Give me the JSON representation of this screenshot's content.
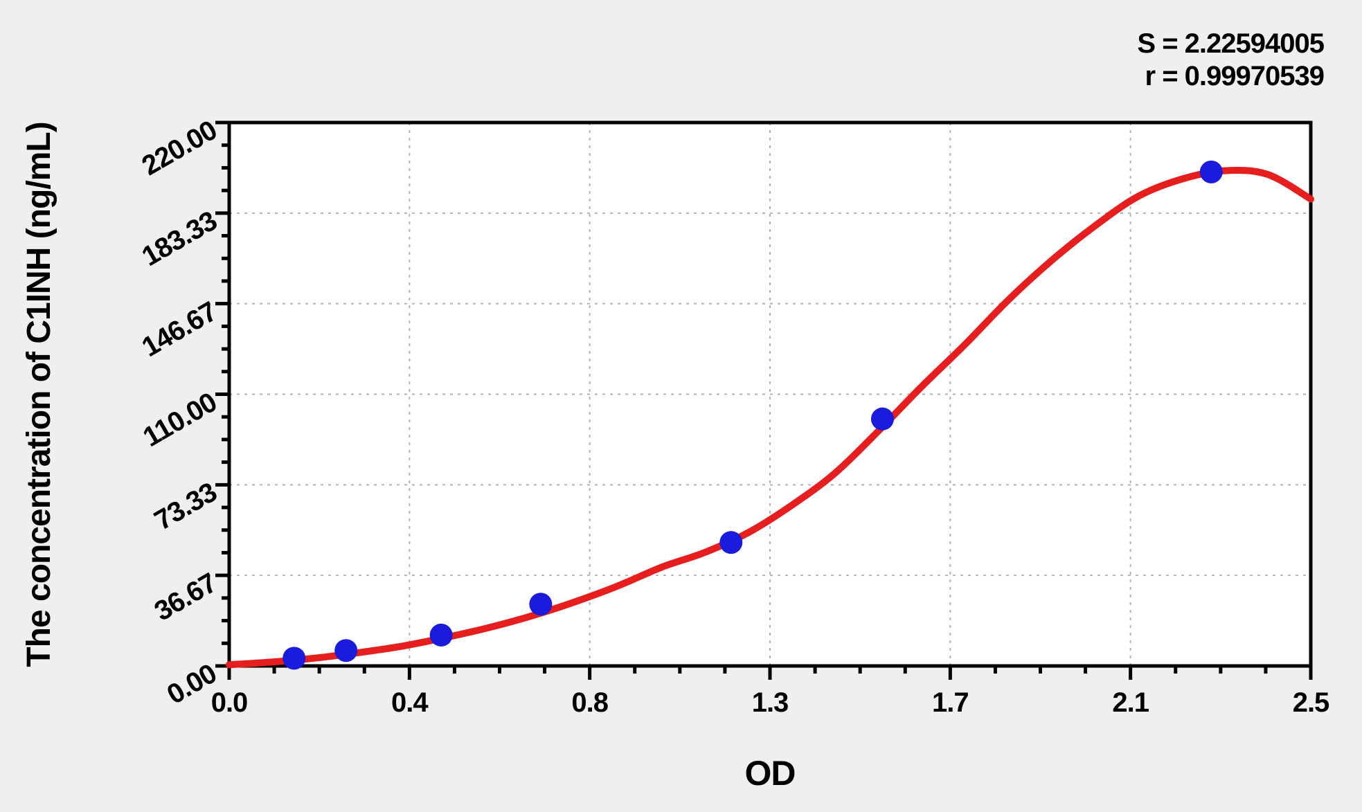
{
  "chart_data": {
    "type": "scatter",
    "title": "",
    "xlabel": "OD",
    "ylabel": "The concentration of C1INH (ng/mL)",
    "xlim": [
      0,
      2.5
    ],
    "ylim": [
      0,
      220
    ],
    "x_axis": {
      "tick_values": [
        0,
        0.4167,
        0.8333,
        1.25,
        1.6667,
        2.0833,
        2.5
      ],
      "tick_labels": [
        "0.0",
        "0.4",
        "0.8",
        "1.3",
        "1.7",
        "2.1",
        "2.5"
      ],
      "minor_divisions": 4
    },
    "y_axis": {
      "tick_values": [
        0,
        36.67,
        73.33,
        110,
        146.67,
        183.33,
        220
      ],
      "tick_labels": [
        "0.00",
        "36.67",
        "73.33",
        "110.00",
        "146.67",
        "183.33",
        "220.00"
      ],
      "minor_divisions": 4
    },
    "grid": {
      "show": true,
      "style": "dashed",
      "at": "major-ticks"
    },
    "legend": "none",
    "points": [
      {
        "od": 0.15,
        "conc": 3.13
      },
      {
        "od": 0.27,
        "conc": 6.25
      },
      {
        "od": 0.49,
        "conc": 12.5
      },
      {
        "od": 0.72,
        "conc": 25
      },
      {
        "od": 1.16,
        "conc": 50
      },
      {
        "od": 1.51,
        "conc": 100
      },
      {
        "od": 2.27,
        "conc": 200
      }
    ],
    "curve": [
      [
        0.0,
        0.5
      ],
      [
        0.1,
        1.6
      ],
      [
        0.2,
        3.2
      ],
      [
        0.3,
        5.4
      ],
      [
        0.4,
        8.0
      ],
      [
        0.5,
        11.5
      ],
      [
        0.6,
        15.5
      ],
      [
        0.7,
        20.3
      ],
      [
        0.8,
        26.0
      ],
      [
        0.9,
        32.5
      ],
      [
        1.0,
        40.0
      ],
      [
        1.1,
        46.0
      ],
      [
        1.2,
        54.0
      ],
      [
        1.3,
        65.0
      ],
      [
        1.4,
        78.0
      ],
      [
        1.5,
        95.0
      ],
      [
        1.6,
        113.0
      ],
      [
        1.7,
        130.0
      ],
      [
        1.8,
        148.0
      ],
      [
        1.9,
        164.0
      ],
      [
        2.0,
        178.0
      ],
      [
        2.1,
        190.0
      ],
      [
        2.2,
        197.0
      ],
      [
        2.3,
        200.5
      ],
      [
        2.4,
        199.0
      ],
      [
        2.5,
        189.0
      ]
    ],
    "stats": {
      "s_text": "S = 2.22594005",
      "r_text": "r = 0.99970539"
    },
    "colors": {
      "curve": "#e61e1e",
      "point": "#1b1bdd",
      "axis": "#000000",
      "grid": "#b2b2b2",
      "plot_bg": "#ffffff",
      "page_bg": "#f0efed"
    }
  }
}
